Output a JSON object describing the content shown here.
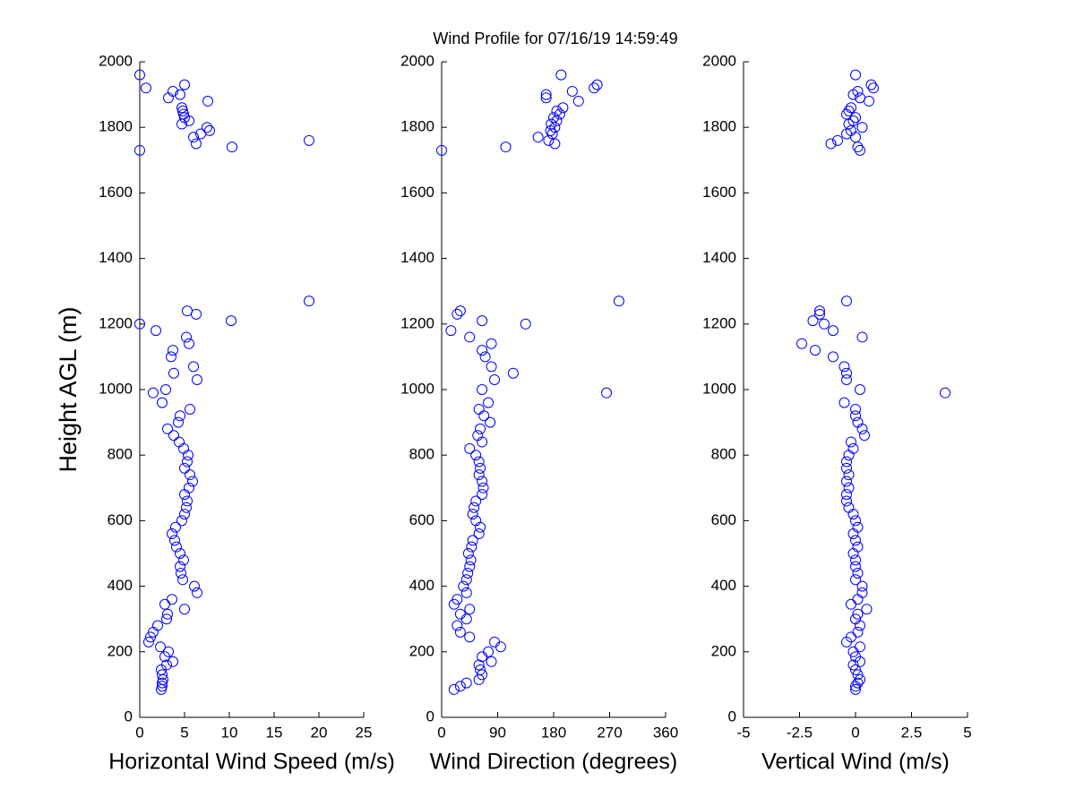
{
  "chart_data": [
    {
      "type": "scatter",
      "title": "Wind Profile for  07/16/19 14:59:49",
      "ylabel": "Height AGL (m)",
      "xlabel": "Horizontal Wind Speed (m/s)",
      "color": "#0000ff",
      "xlim": [
        0,
        25
      ],
      "xticks": [
        0,
        5,
        10,
        15,
        20,
        25
      ],
      "ylim": [
        0,
        2000
      ],
      "yticks": [
        0,
        200,
        400,
        600,
        800,
        1000,
        1200,
        1400,
        1600,
        1800,
        2000
      ],
      "x": [
        2.4,
        2.5,
        2.5,
        2.6,
        2.5,
        2.4,
        3.0,
        3.7,
        2.8,
        3.2,
        2.3,
        1.0,
        1.2,
        1.5,
        2.0,
        3.0,
        3.1,
        5.0,
        2.8,
        3.6,
        6.4,
        6.1,
        4.8,
        4.6,
        4.5,
        4.9,
        4.5,
        4.1,
        3.9,
        3.6,
        4.0,
        4.7,
        5.0,
        5.2,
        5.3,
        5.0,
        5.5,
        5.9,
        5.6,
        5.0,
        5.3,
        5.4,
        4.9,
        4.4,
        3.8,
        3.1,
        4.3,
        4.5,
        5.6,
        2.5,
        1.5,
        2.9,
        6.4,
        3.8,
        6.0,
        3.5,
        3.7,
        5.5,
        5.2,
        1.8,
        0.0,
        10.2,
        6.3,
        5.3,
        18.9,
        0.0,
        10.3,
        6.3,
        18.9,
        6.0,
        6.8,
        7.8,
        7.5,
        4.7,
        5.5,
        5.0,
        4.9,
        4.8,
        4.7,
        7.6,
        3.2,
        4.5,
        3.7,
        0.7,
        5.0,
        0.0
      ],
      "y": [
        85,
        95,
        105,
        115,
        130,
        145,
        160,
        170,
        185,
        200,
        215,
        230,
        245,
        260,
        280,
        300,
        315,
        330,
        345,
        360,
        380,
        400,
        420,
        440,
        460,
        480,
        500,
        520,
        540,
        560,
        580,
        600,
        620,
        640,
        660,
        680,
        700,
        720,
        740,
        760,
        780,
        800,
        820,
        840,
        860,
        880,
        900,
        920,
        940,
        960,
        990,
        1000,
        1030,
        1050,
        1070,
        1100,
        1120,
        1140,
        1160,
        1180,
        1200,
        1210,
        1230,
        1240,
        1270,
        1730,
        1740,
        1750,
        1760,
        1770,
        1780,
        1790,
        1800,
        1810,
        1820,
        1830,
        1840,
        1850,
        1860,
        1880,
        1890,
        1900,
        1910,
        1920,
        1930,
        1960
      ]
    },
    {
      "type": "scatter",
      "xlabel": "Wind Direction (degrees)",
      "color": "#0000ff",
      "xlim": [
        0,
        360
      ],
      "xticks": [
        0,
        90,
        180,
        270,
        360
      ],
      "ylim": [
        0,
        2000
      ],
      "yticks": [
        0,
        200,
        400,
        600,
        800,
        1000,
        1200,
        1400,
        1600,
        1800,
        2000
      ],
      "x": [
        20,
        30,
        40,
        60,
        65,
        62,
        60,
        80,
        65,
        75,
        95,
        85,
        45,
        30,
        25,
        40,
        30,
        45,
        20,
        25,
        40,
        35,
        40,
        42,
        45,
        47,
        43,
        48,
        50,
        60,
        62,
        55,
        50,
        52,
        55,
        65,
        67,
        65,
        60,
        62,
        60,
        55,
        45,
        65,
        58,
        62,
        78,
        68,
        60,
        75,
        265,
        65,
        85,
        115,
        80,
        70,
        65,
        80,
        45,
        15,
        135,
        65,
        25,
        30,
        285,
        0,
        103,
        182,
        172,
        155,
        178,
        175,
        182,
        176,
        185,
        180,
        190,
        185,
        195,
        220,
        168,
        168,
        210,
        245,
        250,
        192
      ],
      "y": [
        85,
        95,
        105,
        115,
        130,
        145,
        160,
        170,
        185,
        200,
        215,
        230,
        245,
        260,
        280,
        300,
        315,
        330,
        345,
        360,
        380,
        400,
        420,
        440,
        460,
        480,
        500,
        520,
        540,
        560,
        580,
        600,
        620,
        640,
        660,
        680,
        700,
        720,
        740,
        760,
        780,
        800,
        820,
        840,
        860,
        880,
        900,
        920,
        940,
        960,
        990,
        1000,
        1030,
        1050,
        1070,
        1100,
        1120,
        1140,
        1160,
        1180,
        1200,
        1210,
        1230,
        1240,
        1270,
        1730,
        1740,
        1750,
        1760,
        1770,
        1780,
        1790,
        1800,
        1810,
        1820,
        1830,
        1840,
        1850,
        1860,
        1880,
        1890,
        1900,
        1910,
        1920,
        1930,
        1960
      ]
    },
    {
      "type": "scatter",
      "xlabel": "Vertical Wind (m/s)",
      "color": "#0000ff",
      "xlim": [
        -5,
        5
      ],
      "xticks": [
        -5,
        -2.5,
        0,
        2.5,
        5
      ],
      "ylim": [
        0,
        2000
      ],
      "yticks": [
        0,
        200,
        400,
        600,
        800,
        1000,
        1200,
        1400,
        1600,
        1800,
        2000
      ],
      "x": [
        0,
        0,
        0.1,
        0.2,
        0.1,
        0,
        -0.1,
        0.2,
        0,
        -0.1,
        0.2,
        -0.4,
        -0.2,
        0.1,
        0.2,
        0,
        0.1,
        0.5,
        -0.2,
        0.1,
        0.3,
        0.3,
        0,
        0.1,
        0,
        0,
        -0.1,
        0.1,
        0,
        -0.1,
        0.1,
        0,
        -0.1,
        -0.3,
        -0.4,
        -0.4,
        -0.3,
        -0.4,
        -0.3,
        -0.4,
        -0.4,
        -0.3,
        -0.1,
        -0.2,
        0.4,
        0.3,
        0.1,
        0,
        0,
        -0.5,
        4.0,
        0.2,
        -0.4,
        -0.4,
        -0.5,
        -1.0,
        -1.8,
        -2.4,
        0.3,
        -1.0,
        -1.4,
        -1.9,
        -1.6,
        -1.6,
        -0.4,
        0.2,
        0.1,
        -1.1,
        -0.8,
        0,
        -0.4,
        -0.2,
        0.3,
        -0.3,
        -0.1,
        0,
        -0.4,
        -0.3,
        -0.2,
        0.6,
        0.2,
        -0.1,
        0.1,
        0.8,
        0.7,
        0
      ],
      "y": [
        85,
        95,
        105,
        115,
        130,
        145,
        160,
        170,
        185,
        200,
        215,
        230,
        245,
        260,
        280,
        300,
        315,
        330,
        345,
        360,
        380,
        400,
        420,
        440,
        460,
        480,
        500,
        520,
        540,
        560,
        580,
        600,
        620,
        640,
        660,
        680,
        700,
        720,
        740,
        760,
        780,
        800,
        820,
        840,
        860,
        880,
        900,
        920,
        940,
        960,
        990,
        1000,
        1030,
        1050,
        1070,
        1100,
        1120,
        1140,
        1160,
        1180,
        1200,
        1210,
        1230,
        1240,
        1270,
        1730,
        1740,
        1750,
        1760,
        1770,
        1780,
        1790,
        1800,
        1810,
        1820,
        1830,
        1840,
        1850,
        1860,
        1880,
        1890,
        1900,
        1910,
        1920,
        1930,
        1960
      ]
    }
  ]
}
